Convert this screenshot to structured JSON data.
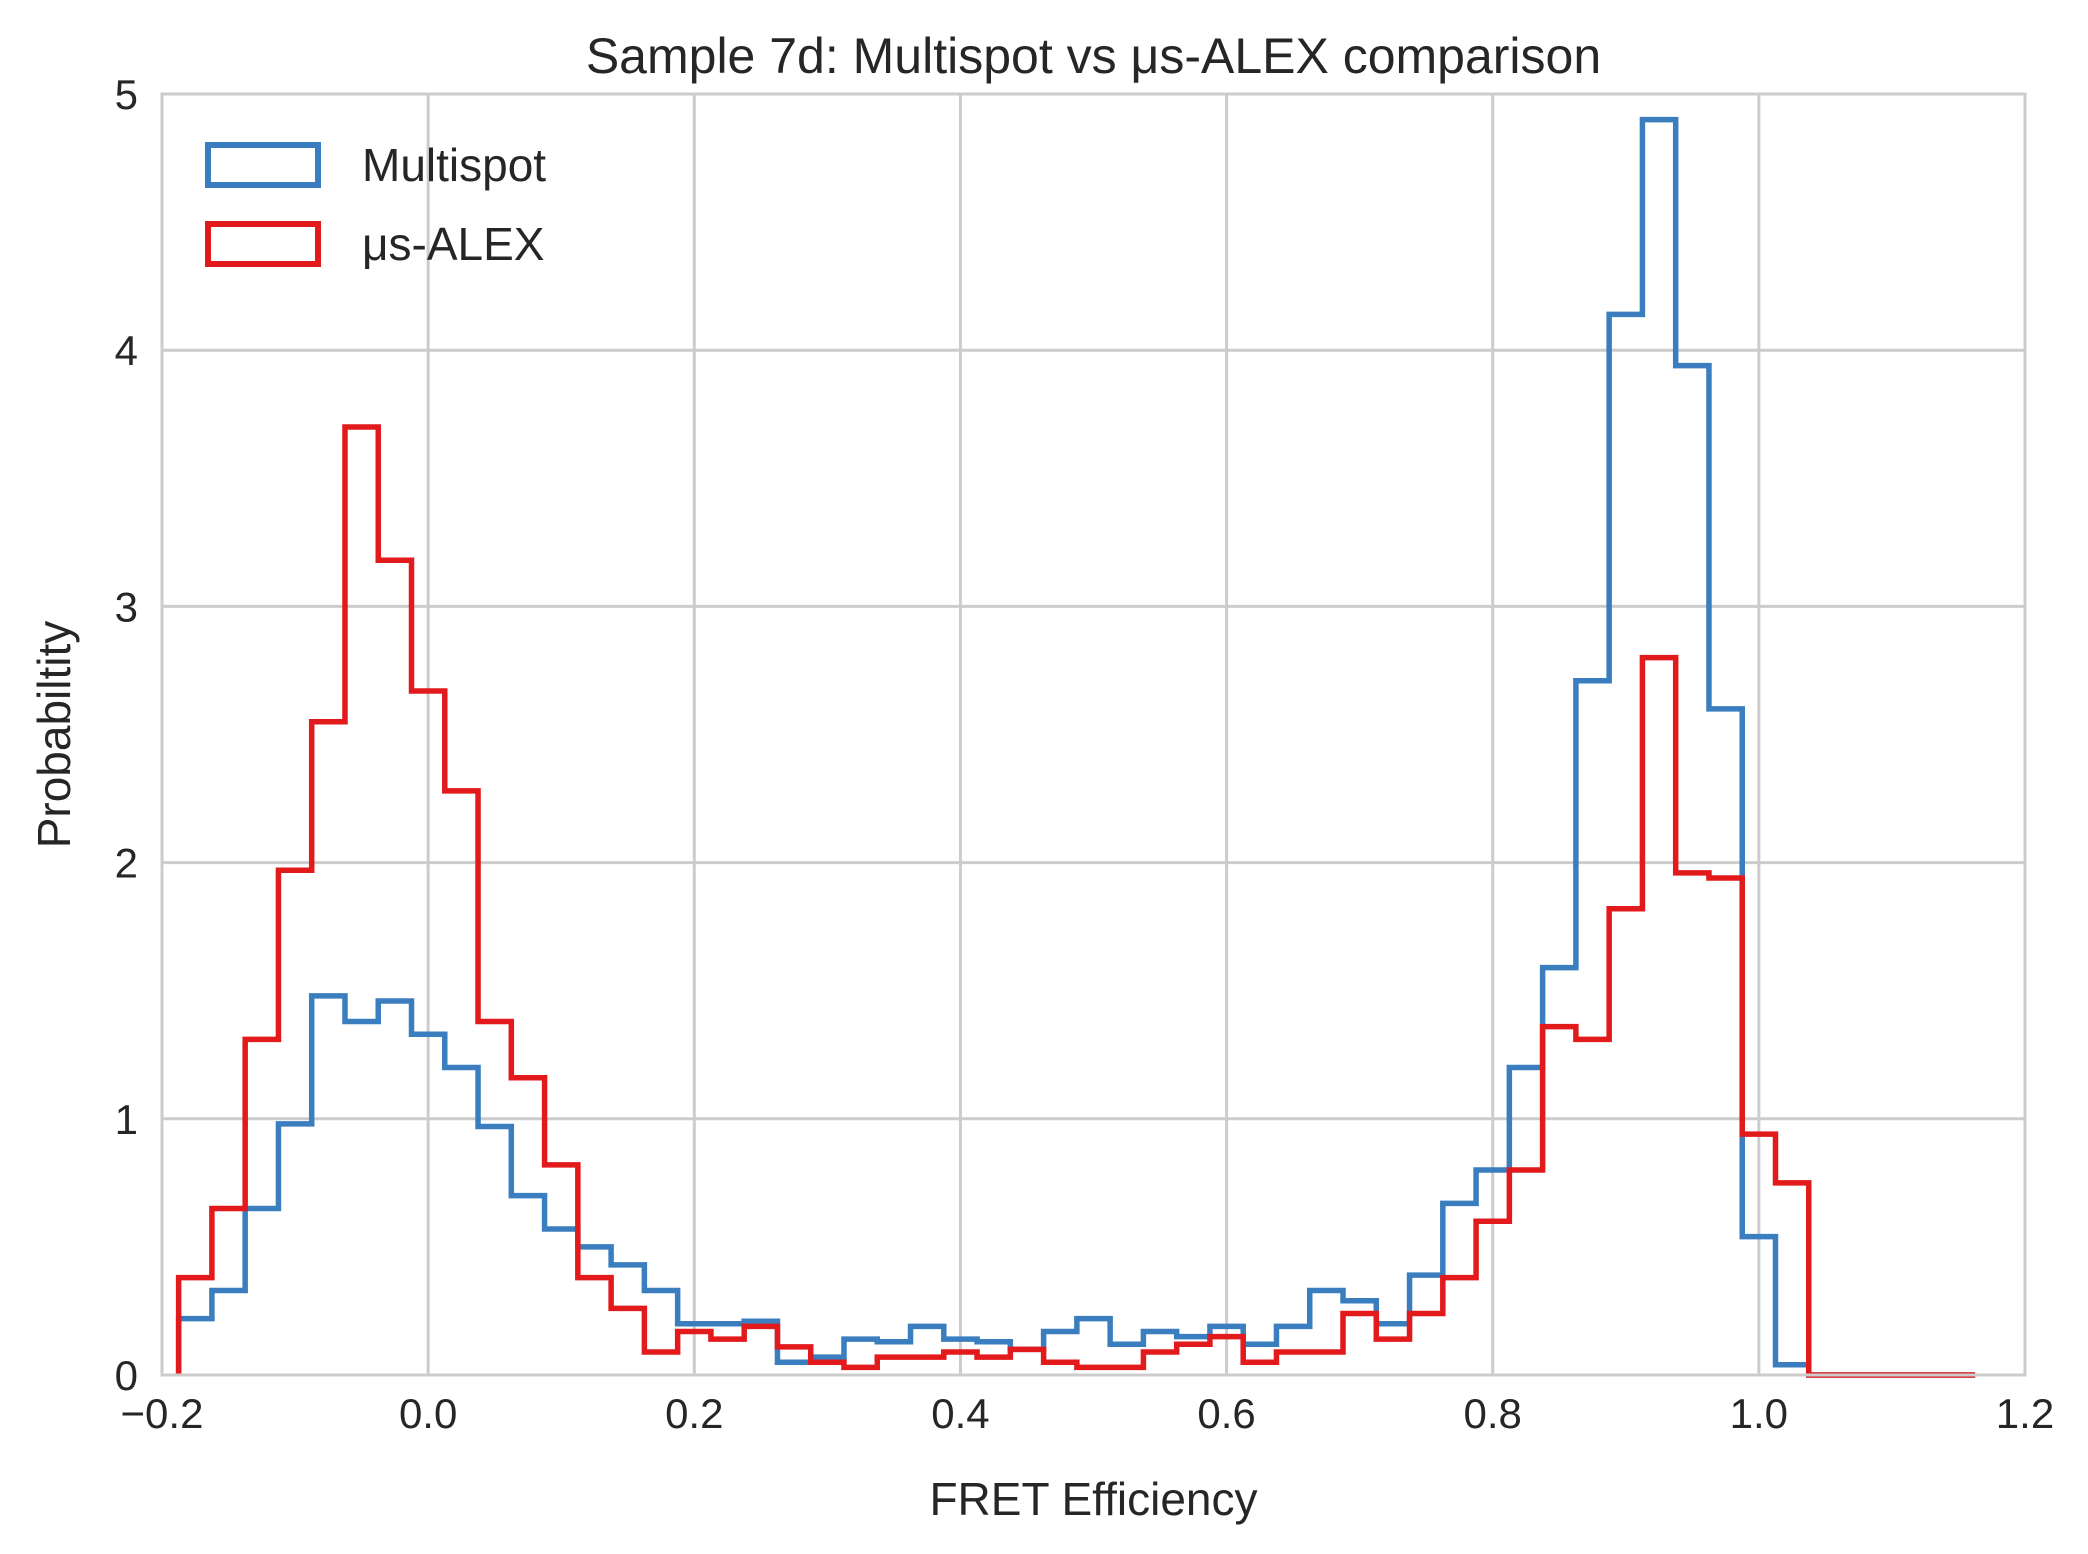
{
  "chart_data": {
    "type": "histogram-step",
    "title": "Sample 7d: Multispot vs μs-ALEX comparison",
    "xlabel": "FRET Efficiency",
    "ylabel": "Probabiltity",
    "xlim": [
      -0.2,
      1.2
    ],
    "ylim": [
      0,
      5
    ],
    "xticks": [
      -0.2,
      0.0,
      0.2,
      0.4,
      0.6,
      0.8,
      1.0,
      1.2
    ],
    "xtick_labels": [
      "−0.2",
      "0.0",
      "0.2",
      "0.4",
      "0.6",
      "0.8",
      "1.0",
      "1.2"
    ],
    "yticks": [
      0,
      1,
      2,
      3,
      4,
      5
    ],
    "ytick_labels": [
      "0",
      "1",
      "2",
      "3",
      "4",
      "5"
    ],
    "grid": true,
    "legend_position": "top-left",
    "bin_edges": [
      -0.1875,
      -0.1625,
      -0.1375,
      -0.1125,
      -0.0875,
      -0.0625,
      -0.0375,
      -0.0125,
      0.0125,
      0.0375,
      0.0625,
      0.0875,
      0.1125,
      0.1375,
      0.1625,
      0.1875,
      0.2125,
      0.2375,
      0.2625,
      0.2875,
      0.3125,
      0.3375,
      0.3625,
      0.3875,
      0.4125,
      0.4375,
      0.4625,
      0.4875,
      0.5125,
      0.5375,
      0.5625,
      0.5875,
      0.6125,
      0.6375,
      0.6625,
      0.6875,
      0.7125,
      0.7375,
      0.7625,
      0.7875,
      0.8125,
      0.8375,
      0.8625,
      0.8875,
      0.9125,
      0.9375,
      0.9625,
      0.9875,
      1.0125,
      1.0375,
      1.0625,
      1.0875,
      1.1125,
      1.1375,
      1.1625,
      1.1875
    ],
    "series": [
      {
        "name": "Multispot",
        "color": "#3a7ebf",
        "values": [
          0.22,
          0.33,
          0.65,
          0.98,
          1.48,
          1.38,
          1.46,
          1.33,
          1.2,
          0.97,
          0.7,
          0.57,
          0.5,
          0.43,
          0.33,
          0.2,
          0.2,
          0.21,
          0.05,
          0.07,
          0.14,
          0.13,
          0.19,
          0.14,
          0.13,
          0.1,
          0.17,
          0.22,
          0.12,
          0.17,
          0.15,
          0.19,
          0.12,
          0.19,
          0.33,
          0.29,
          0.2,
          0.39,
          0.67,
          0.8,
          1.2,
          1.59,
          2.71,
          4.14,
          4.9,
          3.94,
          2.6,
          0.54,
          0.04,
          0.0,
          0.0,
          0.0,
          0.0,
          0.0
        ]
      },
      {
        "name": "μs-ALEX",
        "color": "#e31a1c",
        "values": [
          0.38,
          0.65,
          1.31,
          1.97,
          2.55,
          3.7,
          3.18,
          2.67,
          2.28,
          1.38,
          1.16,
          0.82,
          0.38,
          0.26,
          0.09,
          0.17,
          0.14,
          0.19,
          0.11,
          0.05,
          0.03,
          0.07,
          0.07,
          0.09,
          0.07,
          0.1,
          0.05,
          0.03,
          0.03,
          0.09,
          0.12,
          0.15,
          0.05,
          0.09,
          0.09,
          0.24,
          0.14,
          0.24,
          0.38,
          0.6,
          0.8,
          1.36,
          1.31,
          1.82,
          2.8,
          1.96,
          1.94,
          0.94,
          0.75,
          0.0,
          0.0,
          0.0,
          0.0,
          0.0
        ]
      }
    ]
  }
}
